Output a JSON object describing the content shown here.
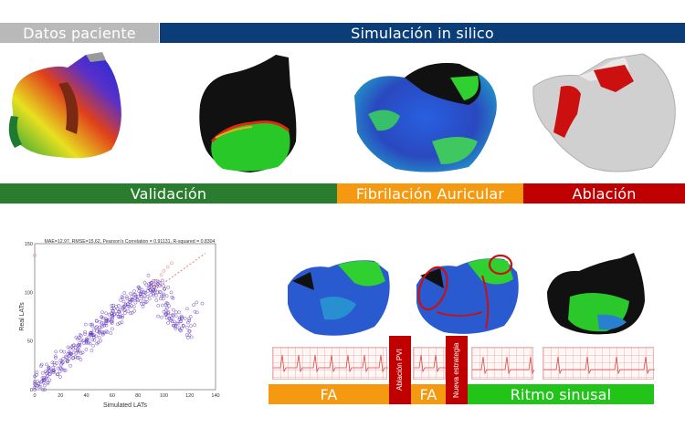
{
  "header": {
    "datos_paciente": "Datos paciente",
    "simulacion": "Simulación in silico"
  },
  "labels": {
    "validacion": "Validación",
    "fibrilacion": "Fibrilación Auricular",
    "ablacion": "Ablación"
  },
  "timeline": {
    "fa_1": "FA",
    "ablacion_pvi": "Ablación PVI",
    "fa_2": "FA",
    "nueva_estrategia": "Nueva estrategia",
    "ritmo_sinusal": "Ritmo sinusal"
  },
  "colors": {
    "header_gray": "#b9b9b9",
    "header_blue": "#0b3d78",
    "green": "#2a7d2e",
    "orange": "#f59a10",
    "red": "#c00000",
    "bright_green": "#22c41a"
  },
  "chart_data": {
    "type": "scatter",
    "title": "MAE=12.97, RMSE=15.62, Pearson's Correlation = 0.91131, R-squared = 0.8304",
    "xlabel": "Simulated LATs",
    "ylabel": "Real LATs",
    "xlim": [
      0,
      140
    ],
    "ylim": [
      0,
      150
    ],
    "xticks": [
      "0",
      "20",
      "40",
      "60",
      "80",
      "100",
      "120",
      "140"
    ],
    "yticks": [
      "0",
      "50",
      "100",
      "150"
    ],
    "series": [
      {
        "color": "#5a2db8",
        "x": [
          2,
          5,
          8,
          12,
          15,
          18,
          22,
          25,
          28,
          30,
          33,
          35,
          38,
          40,
          42,
          45,
          48,
          50,
          52,
          55,
          58,
          60,
          62,
          65,
          68,
          70,
          72,
          75,
          78,
          80,
          82,
          85,
          88,
          90,
          92,
          95,
          98,
          100,
          102,
          105,
          108,
          110,
          112,
          115,
          118,
          120,
          10,
          20,
          30,
          40,
          50,
          60,
          70,
          80,
          90,
          100,
          3,
          6,
          14,
          24,
          34,
          44,
          54,
          64,
          74,
          84,
          94,
          104,
          114,
          124
        ],
        "y": [
          4,
          8,
          10,
          16,
          20,
          22,
          28,
          30,
          36,
          38,
          40,
          46,
          48,
          50,
          54,
          56,
          60,
          62,
          66,
          68,
          72,
          74,
          78,
          80,
          84,
          86,
          88,
          92,
          94,
          96,
          98,
          100,
          104,
          102,
          106,
          100,
          96,
          80,
          78,
          76,
          70,
          68,
          72,
          66,
          64,
          60,
          18,
          30,
          42,
          52,
          60,
          70,
          82,
          92,
          110,
          98,
          6,
          12,
          20,
          34,
          46,
          58,
          66,
          78,
          90,
          100,
          108,
          86,
          74,
          80
        ]
      },
      {
        "color": "#e06060",
        "x": [
          0,
          92,
          95,
          98,
          100,
          103,
          106
        ],
        "y": [
          138,
          108,
          112,
          118,
          122,
          126,
          130
        ]
      }
    ],
    "trend_line": {
      "x": [
        90,
        132
      ],
      "y": [
        100,
        140
      ]
    }
  }
}
